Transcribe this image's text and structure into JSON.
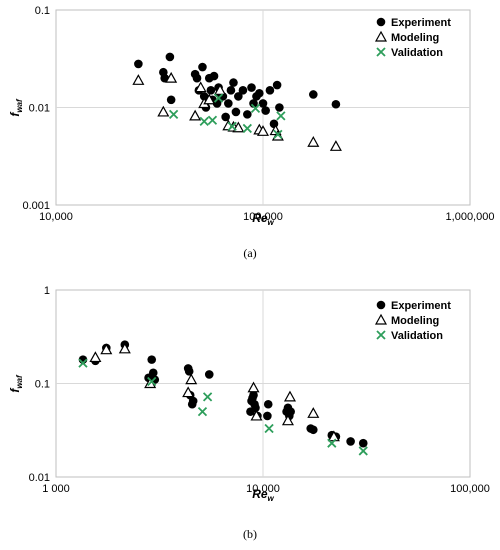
{
  "chart_data": [
    {
      "type": "scatter",
      "caption": "(a)",
      "x_scale": "log",
      "y_scale": "log",
      "xlim": [
        10000,
        1000000
      ],
      "ylim": [
        0.001,
        0.1
      ],
      "x_ticks": [
        10000,
        100000,
        1000000
      ],
      "x_tick_labels": [
        "10,000",
        "100,000",
        "1,000,000"
      ],
      "y_ticks": [
        0.001,
        0.01,
        0.1
      ],
      "y_tick_labels": [
        "0.001",
        "0.01",
        "0.1"
      ],
      "xlabel_main": "Re",
      "xlabel_sub": "w",
      "ylabel_main": "f",
      "ylabel_sub": "waf",
      "grid": "major gridlines on",
      "legend_position": "top-right",
      "series": [
        {
          "name": "Experiment",
          "marker": "filled-circle",
          "color": "#000000",
          "x": [
            25000,
            33000,
            33500,
            35500,
            36000,
            47000,
            48000,
            49000,
            51000,
            52000,
            53000,
            55000,
            56000,
            57000,
            58000,
            60000,
            61000,
            62000,
            64000,
            66000,
            68000,
            70000,
            72000,
            74000,
            76000,
            80000,
            84000,
            88000,
            90000,
            93000,
            96000,
            100000,
            103000,
            108000,
            113000,
            117000,
            120000,
            175000,
            225000
          ],
          "y": [
            0.028,
            0.023,
            0.02,
            0.033,
            0.012,
            0.022,
            0.02,
            0.015,
            0.026,
            0.013,
            0.01,
            0.02,
            0.015,
            0.012,
            0.021,
            0.011,
            0.016,
            0.014,
            0.013,
            0.008,
            0.011,
            0.015,
            0.018,
            0.009,
            0.013,
            0.015,
            0.0085,
            0.016,
            0.011,
            0.013,
            0.014,
            0.011,
            0.0093,
            0.015,
            0.0068,
            0.017,
            0.01,
            0.0136,
            0.0108
          ]
        },
        {
          "name": "Modeling",
          "marker": "open-triangle",
          "color": "#000000",
          "x": [
            25000,
            33000,
            36000,
            47000,
            50000,
            52000,
            55000,
            62000,
            68000,
            72000,
            76000,
            96000,
            100000,
            115000,
            118000,
            175000,
            225000
          ],
          "y": [
            0.019,
            0.009,
            0.02,
            0.0082,
            0.016,
            0.011,
            0.012,
            0.015,
            0.0065,
            0.0063,
            0.0062,
            0.0059,
            0.0057,
            0.0058,
            0.0051,
            0.0044,
            0.004
          ]
        },
        {
          "name": "Validation",
          "marker": "x",
          "color": "#2e9e5b",
          "x": [
            37000,
            52000,
            57000,
            61000,
            71000,
            84000,
            92000,
            118000,
            122000
          ],
          "y": [
            0.0085,
            0.0072,
            0.0074,
            0.0125,
            0.0064,
            0.0061,
            0.0098,
            0.0053,
            0.0082
          ]
        }
      ]
    },
    {
      "type": "scatter",
      "caption": "(b)",
      "x_scale": "log",
      "y_scale": "log",
      "xlim": [
        1000,
        100000
      ],
      "ylim": [
        0.01,
        1
      ],
      "x_ticks": [
        1000,
        10000,
        100000
      ],
      "x_tick_labels": [
        "1 000",
        "10,000",
        "100,000"
      ],
      "y_ticks": [
        0.01,
        0.1,
        1
      ],
      "y_tick_labels": [
        "0.01",
        "0.1",
        "1"
      ],
      "xlabel_main": "Re",
      "xlabel_sub": "w",
      "ylabel_main": "f",
      "ylabel_sub": "waf",
      "grid": "major gridlines on",
      "legend_position": "top-right",
      "series": [
        {
          "name": "Experiment",
          "marker": "filled-circle",
          "color": "#000000",
          "x": [
            1350,
            1550,
            1750,
            2150,
            2800,
            2900,
            2950,
            3000,
            4350,
            4400,
            4450,
            4550,
            4600,
            5500,
            8700,
            8800,
            8900,
            9000,
            9100,
            9200,
            9400,
            10500,
            10600,
            13000,
            13200,
            13400,
            13600,
            17000,
            17500,
            21500,
            22500,
            26500,
            30500
          ],
          "y": [
            0.18,
            0.175,
            0.24,
            0.26,
            0.115,
            0.18,
            0.13,
            0.11,
            0.145,
            0.135,
            0.075,
            0.06,
            0.065,
            0.125,
            0.05,
            0.065,
            0.07,
            0.075,
            0.06,
            0.055,
            0.045,
            0.045,
            0.06,
            0.05,
            0.055,
            0.045,
            0.05,
            0.033,
            0.032,
            0.028,
            0.027,
            0.024,
            0.023
          ]
        },
        {
          "name": "Modeling",
          "marker": "open-triangle",
          "color": "#000000",
          "x": [
            1550,
            1750,
            2150,
            2850,
            4350,
            4500,
            9000,
            9300,
            13200,
            13500,
            17500,
            22000
          ],
          "y": [
            0.19,
            0.23,
            0.235,
            0.1,
            0.08,
            0.11,
            0.09,
            0.045,
            0.04,
            0.072,
            0.048,
            0.027
          ]
        },
        {
          "name": "Validation",
          "marker": "x",
          "color": "#2e9e5b",
          "x": [
            1350,
            2900,
            5100,
            5400,
            10700,
            21500,
            30500
          ],
          "y": [
            0.165,
            0.105,
            0.05,
            0.072,
            0.033,
            0.023,
            0.019
          ]
        }
      ]
    }
  ]
}
